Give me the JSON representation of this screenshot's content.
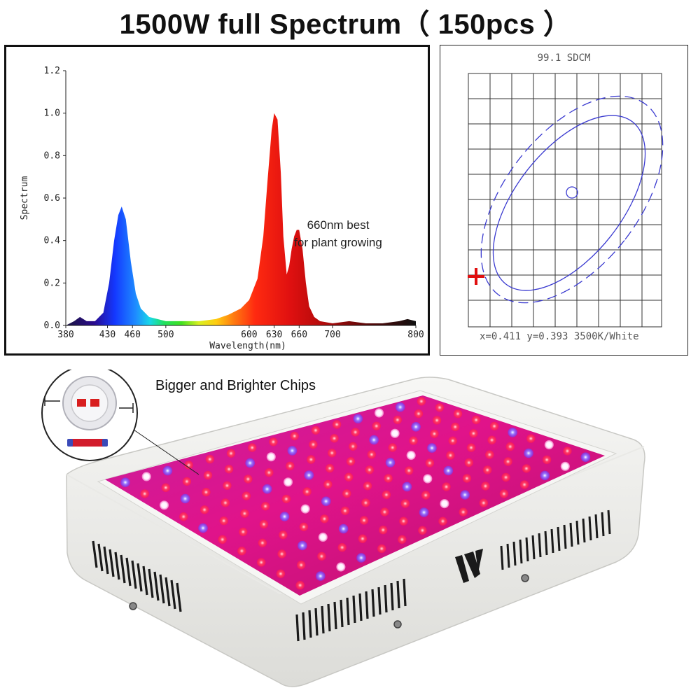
{
  "title": "1500W full Spectrum（ 150pcs ）",
  "spectrum": {
    "annotation_line1": "660nm best",
    "annotation_line2": "for plant growing"
  },
  "chromaticity": {
    "sdcm_label": "99.1 SDCM",
    "coordinates_label": "x=0.411 y=0.393 3500K/White"
  },
  "product": {
    "caption": "Bigger and Brighter Chips",
    "chip_count": 150,
    "colors": {
      "housing": "#f4f4f2",
      "led_red": "#ff2a55",
      "led_blue": "#7a4bff",
      "led_white": "#ffffff",
      "panel_glow": "#e0138a"
    }
  },
  "chart_data": {
    "type": "area",
    "title": "",
    "xlabel": "Wavelength(nm)",
    "ylabel": "Spectrum",
    "xlim": [
      380,
      800
    ],
    "ylim": [
      0,
      1.2
    ],
    "x_ticks": [
      380,
      430,
      460,
      500,
      600,
      630,
      660,
      700,
      800
    ],
    "y_ticks": [
      "0.0",
      "0.2",
      "0.4",
      "0.6",
      "0.8",
      "1.0",
      "1.2"
    ],
    "grid": false,
    "x": [
      380,
      390,
      397,
      405,
      415,
      425,
      432,
      438,
      443,
      447,
      452,
      458,
      464,
      470,
      480,
      490,
      500,
      520,
      540,
      560,
      575,
      590,
      600,
      610,
      617,
      622,
      627,
      630,
      634,
      638,
      641,
      645,
      648,
      651,
      654,
      657,
      660,
      664,
      668,
      672,
      678,
      685,
      700,
      720,
      740,
      760,
      780,
      790,
      800
    ],
    "values": [
      0.0,
      0.02,
      0.04,
      0.02,
      0.02,
      0.06,
      0.2,
      0.4,
      0.52,
      0.56,
      0.5,
      0.3,
      0.15,
      0.08,
      0.04,
      0.03,
      0.02,
      0.02,
      0.02,
      0.03,
      0.05,
      0.08,
      0.12,
      0.22,
      0.42,
      0.68,
      0.92,
      1.0,
      0.97,
      0.72,
      0.42,
      0.24,
      0.28,
      0.36,
      0.42,
      0.45,
      0.45,
      0.36,
      0.2,
      0.09,
      0.04,
      0.02,
      0.01,
      0.02,
      0.01,
      0.01,
      0.02,
      0.03,
      0.02
    ]
  }
}
